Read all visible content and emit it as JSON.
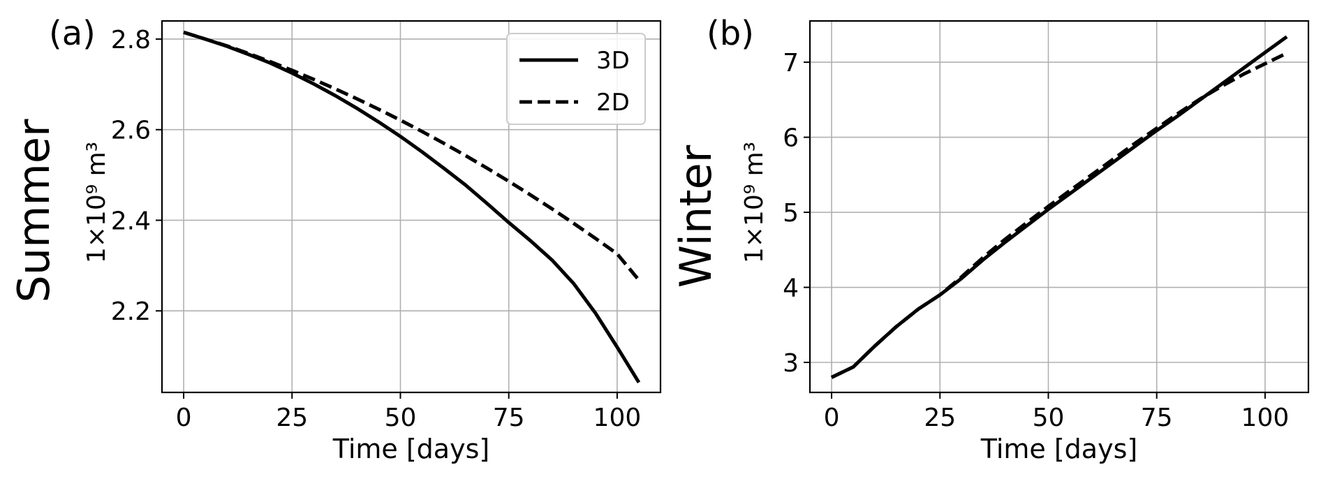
{
  "chart_data": [
    {
      "type": "line",
      "panel_label": "(a)",
      "row_label": "Summer",
      "ylabel": "1×10⁹ m³",
      "xlabel": "Time [days]",
      "xlim": [
        -5,
        110
      ],
      "ylim": [
        2.02,
        2.84
      ],
      "xticks": [
        0,
        25,
        50,
        75,
        100
      ],
      "yticks": [
        2.2,
        2.4,
        2.6,
        2.8
      ],
      "grid": true,
      "legend_position": "top-right",
      "series": [
        {
          "name": "3D",
          "style": "solid",
          "x": [
            0,
            5,
            10,
            15,
            20,
            25,
            30,
            35,
            40,
            45,
            50,
            55,
            60,
            65,
            70,
            75,
            80,
            85,
            90,
            95,
            100,
            105
          ],
          "y": [
            2.815,
            2.8,
            2.784,
            2.766,
            2.747,
            2.725,
            2.701,
            2.675,
            2.647,
            2.617,
            2.585,
            2.551,
            2.515,
            2.478,
            2.437,
            2.395,
            2.355,
            2.312,
            2.26,
            2.195,
            2.12,
            2.042
          ]
        },
        {
          "name": "2D",
          "style": "dashed",
          "x": [
            0,
            5,
            10,
            15,
            20,
            25,
            30,
            35,
            40,
            45,
            50,
            55,
            60,
            65,
            70,
            75,
            80,
            85,
            90,
            95,
            100,
            105
          ],
          "y": [
            2.815,
            2.8,
            2.785,
            2.768,
            2.75,
            2.731,
            2.711,
            2.69,
            2.668,
            2.645,
            2.621,
            2.596,
            2.57,
            2.543,
            2.515,
            2.486,
            2.456,
            2.425,
            2.393,
            2.36,
            2.326,
            2.268
          ]
        }
      ]
    },
    {
      "type": "line",
      "panel_label": "(b)",
      "row_label": "Winter",
      "ylabel": "1×10⁹ m³",
      "xlabel": "Time [days]",
      "xlim": [
        -5,
        110
      ],
      "ylim": [
        2.6,
        7.55
      ],
      "xticks": [
        0,
        25,
        50,
        75,
        100
      ],
      "yticks": [
        3,
        4,
        5,
        6,
        7
      ],
      "grid": true,
      "series": [
        {
          "name": "3D",
          "style": "solid",
          "x": [
            0,
            5,
            10,
            15,
            20,
            25,
            30,
            35,
            40,
            45,
            50,
            55,
            60,
            65,
            70,
            75,
            80,
            85,
            90,
            95,
            100,
            105
          ],
          "y": [
            2.8,
            2.94,
            3.22,
            3.48,
            3.71,
            3.9,
            4.12,
            4.37,
            4.6,
            4.82,
            5.04,
            5.25,
            5.46,
            5.67,
            5.88,
            6.09,
            6.29,
            6.5,
            6.71,
            6.92,
            7.13,
            7.34
          ]
        },
        {
          "name": "2D",
          "style": "dashed",
          "x": [
            0,
            5,
            10,
            15,
            20,
            25,
            30,
            35,
            40,
            45,
            50,
            55,
            60,
            65,
            70,
            75,
            80,
            85,
            90,
            95,
            100,
            105
          ],
          "y": [
            2.8,
            2.94,
            3.22,
            3.48,
            3.71,
            3.9,
            4.14,
            4.4,
            4.64,
            4.86,
            5.08,
            5.29,
            5.5,
            5.71,
            5.92,
            6.12,
            6.32,
            6.51,
            6.68,
            6.84,
            6.98,
            7.12
          ]
        }
      ]
    }
  ]
}
